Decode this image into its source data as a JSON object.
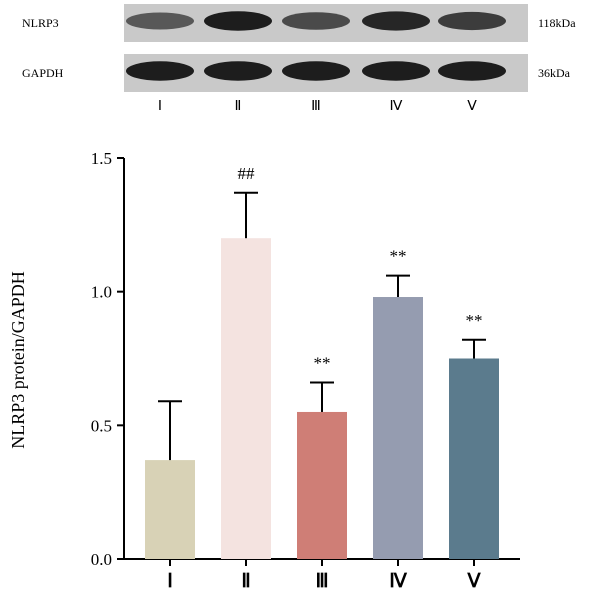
{
  "blot": {
    "rows": [
      {
        "label": "NLRP3",
        "size": "118kDa",
        "intensities": [
          0.62,
          0.95,
          0.7,
          0.9,
          0.78
        ]
      },
      {
        "label": "GAPDH",
        "size": "36kDa",
        "intensities": [
          0.95,
          0.95,
          0.95,
          0.95,
          0.95
        ]
      }
    ],
    "lanes": [
      "Ⅰ",
      "Ⅱ",
      "Ⅲ",
      "Ⅳ",
      "Ⅴ"
    ]
  },
  "chart_data": {
    "type": "bar",
    "categories": [
      "Ⅰ",
      "Ⅱ",
      "Ⅲ",
      "Ⅳ",
      "Ⅴ"
    ],
    "values": [
      0.37,
      1.2,
      0.55,
      0.98,
      0.75
    ],
    "errors": [
      0.22,
      0.17,
      0.11,
      0.08,
      0.07
    ],
    "annotations": [
      "",
      "##",
      "**",
      "**",
      "**"
    ],
    "colors": [
      "#d8d2b6",
      "#f4e3e0",
      "#cf7e76",
      "#959cb0",
      "#5b7b8d"
    ],
    "ylabel": "NLRP3 protein/GAPDH",
    "ylim": [
      0,
      1.5
    ],
    "yticks": [
      0.0,
      0.5,
      1.0,
      1.5
    ],
    "ytick_labels": [
      "0.0",
      "0.5",
      "1.0",
      "1.5"
    ],
    "grid": false
  }
}
